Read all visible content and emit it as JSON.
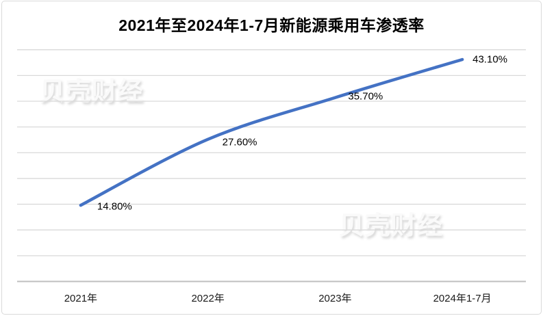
{
  "watermark": {
    "text": "贝壳财经"
  },
  "chart_data": {
    "type": "line",
    "title": "2021年至2024年1-7月新能源乘用车渗透率",
    "categories": [
      "2021年",
      "2022年",
      "2023年",
      "2024年1-7月"
    ],
    "values": [
      14.8,
      27.6,
      35.7,
      43.1
    ],
    "data_labels": [
      "14.80%",
      "27.60%",
      "35.70%",
      "43.10%"
    ],
    "xlabel": "",
    "ylabel": "",
    "ylim": [
      0,
      45
    ],
    "grid_step": 5,
    "grid": "horizontal",
    "y_axis_tick_labels_visible": false,
    "legend_position": "none",
    "line_color": "#4472C4",
    "gridline_color": "#d9d9d9",
    "axis_line_color": "#bfbfbf",
    "smoothed_line": true
  }
}
